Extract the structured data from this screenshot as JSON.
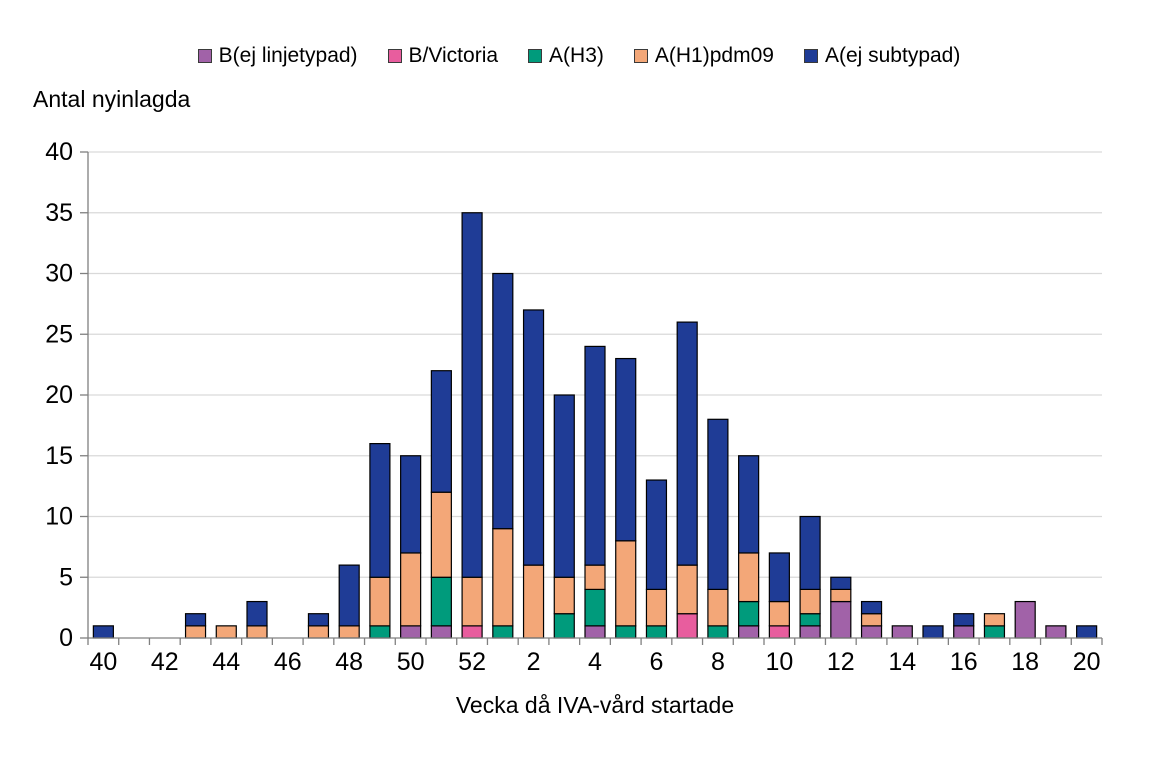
{
  "chart_data": {
    "type": "bar",
    "stacked": true,
    "title": "",
    "ylabel": "Antal nyinlagda",
    "xlabel": "Vecka då IVA-vård startade",
    "ylim": [
      0,
      40
    ],
    "yticks": [
      0,
      5,
      10,
      15,
      20,
      25,
      30,
      35,
      40
    ],
    "grid": "horizontal",
    "legend_position": "top-center",
    "categories": [
      "40",
      "41",
      "42",
      "43",
      "44",
      "45",
      "46",
      "47",
      "48",
      "49",
      "50",
      "51",
      "52",
      "1",
      "2",
      "3",
      "4",
      "5",
      "6",
      "7",
      "8",
      "9",
      "10",
      "11",
      "12",
      "13",
      "14",
      "15",
      "16",
      "17",
      "18",
      "19",
      "20"
    ],
    "x_tick_labels_shown": [
      "40",
      "42",
      "44",
      "46",
      "48",
      "50",
      "52",
      "2",
      "4",
      "6",
      "8",
      "10",
      "12",
      "14",
      "16",
      "18",
      "20"
    ],
    "series": [
      {
        "name": "B(ej linjetypad)",
        "color": "#A162A8",
        "values": [
          0,
          0,
          0,
          0,
          0,
          0,
          0,
          0,
          0,
          0,
          1,
          1,
          0,
          0,
          0,
          0,
          1,
          0,
          0,
          0,
          0,
          1,
          0,
          1,
          3,
          1,
          1,
          0,
          1,
          0,
          3,
          1,
          0
        ]
      },
      {
        "name": "B/Victoria",
        "color": "#E85D9E",
        "values": [
          0,
          0,
          0,
          0,
          0,
          0,
          0,
          0,
          0,
          0,
          0,
          0,
          1,
          0,
          0,
          0,
          0,
          0,
          0,
          2,
          0,
          0,
          1,
          0,
          0,
          0,
          0,
          0,
          0,
          0,
          0,
          0,
          0
        ]
      },
      {
        "name": "A(H3)",
        "color": "#009B7C",
        "values": [
          0,
          0,
          0,
          0,
          0,
          0,
          0,
          0,
          0,
          1,
          0,
          4,
          0,
          1,
          0,
          2,
          3,
          1,
          1,
          0,
          1,
          2,
          0,
          1,
          0,
          0,
          0,
          0,
          0,
          1,
          0,
          0,
          0
        ]
      },
      {
        "name": "A(H1)pdm09",
        "color": "#F3A778",
        "values": [
          0,
          0,
          0,
          1,
          1,
          1,
          0,
          1,
          1,
          4,
          6,
          7,
          4,
          8,
          6,
          3,
          2,
          7,
          3,
          4,
          3,
          4,
          2,
          2,
          1,
          1,
          0,
          0,
          0,
          1,
          0,
          0,
          0
        ]
      },
      {
        "name": "A(ej subtypad)",
        "color": "#1F3C96",
        "values": [
          1,
          0,
          0,
          1,
          0,
          2,
          0,
          1,
          5,
          11,
          8,
          10,
          30,
          21,
          21,
          15,
          18,
          15,
          9,
          20,
          14,
          8,
          4,
          6,
          1,
          1,
          0,
          1,
          1,
          0,
          0,
          0,
          1
        ]
      }
    ],
    "totals": [
      1,
      0,
      0,
      2,
      1,
      3,
      0,
      2,
      6,
      16,
      15,
      22,
      35,
      30,
      27,
      20,
      24,
      23,
      13,
      26,
      18,
      15,
      7,
      10,
      5,
      3,
      1,
      1,
      2,
      2,
      3,
      1,
      1
    ]
  },
  "style": {
    "axis_color": "#808080",
    "gridline_color": "#D9D9D9",
    "bar_border_color": "#000000",
    "text_color": "#000000"
  }
}
